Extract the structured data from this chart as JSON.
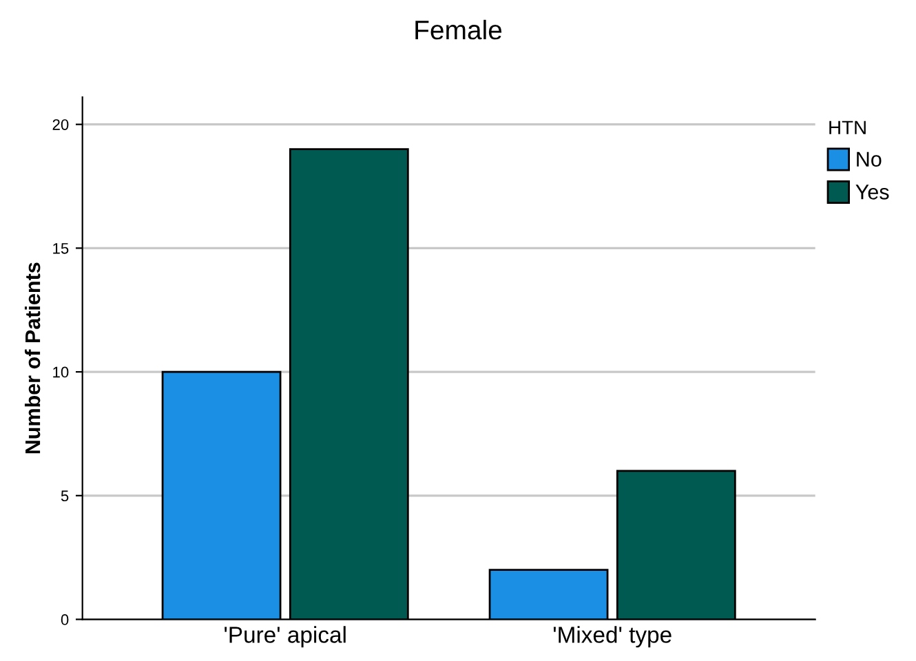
{
  "chart_data": {
    "type": "bar",
    "title": "Female",
    "ylabel": "Number of Patients",
    "legend_title": "HTN",
    "categories": [
      "'Pure' apical",
      "'Mixed' type"
    ],
    "series": [
      {
        "name": "No",
        "color": "#1a8fe3",
        "values": [
          10,
          2
        ]
      },
      {
        "name": "Yes",
        "color": "#005a52",
        "values": [
          19,
          6
        ]
      }
    ],
    "ylim": [
      0,
      21.1
    ],
    "yticks": [
      0,
      5,
      10,
      15,
      20
    ],
    "grid": "y",
    "legend": "top right"
  }
}
